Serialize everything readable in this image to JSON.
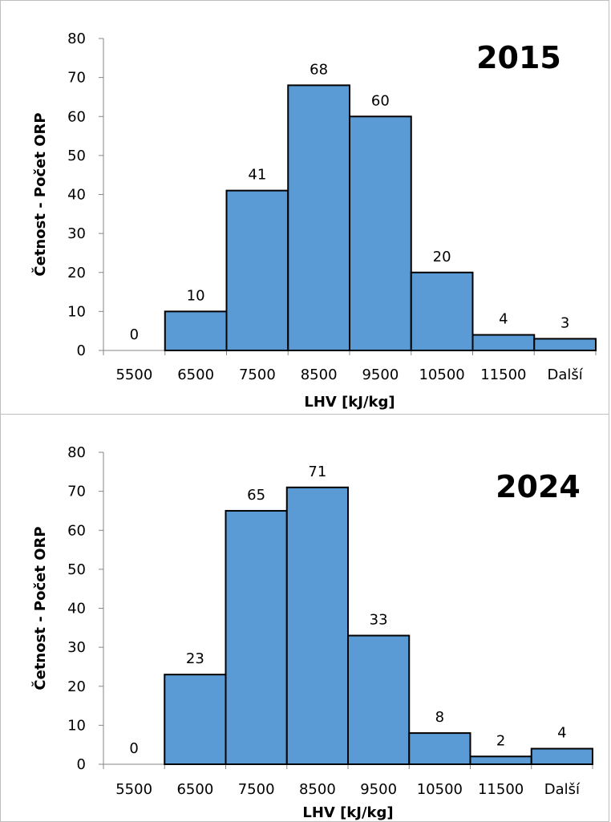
{
  "chart_data": [
    {
      "type": "bar",
      "title": "2015",
      "xlabel": "LHV [kJ/kg]",
      "ylabel": "Četnost - Počet ORP",
      "categories": [
        "5500",
        "6500",
        "7500",
        "8500",
        "9500",
        "10500",
        "11500",
        "Další"
      ],
      "values": [
        0,
        10,
        41,
        68,
        60,
        20,
        4,
        3
      ],
      "data_labels": [
        "0",
        "10",
        "41",
        "68",
        "60",
        "20",
        "4",
        "3"
      ],
      "ylim": [
        0,
        80
      ],
      "yticks": [
        "0",
        "10",
        "20",
        "30",
        "40",
        "50",
        "60",
        "70",
        "80"
      ],
      "bar_color": "#5b9bd5",
      "grid": false,
      "legend": "none"
    },
    {
      "type": "bar",
      "title": "2024",
      "xlabel": "LHV [kJ/kg]",
      "ylabel": "Četnost - Počet ORP",
      "categories": [
        "5500",
        "6500",
        "7500",
        "8500",
        "9500",
        "10500",
        "11500",
        "Další"
      ],
      "values": [
        0,
        23,
        65,
        71,
        33,
        8,
        2,
        4
      ],
      "data_labels": [
        "0",
        "23",
        "65",
        "71",
        "33",
        "8",
        "2",
        "4"
      ],
      "ylim": [
        0,
        80
      ],
      "yticks": [
        "0",
        "10",
        "20",
        "30",
        "40",
        "50",
        "60",
        "70",
        "80"
      ],
      "bar_color": "#5b9bd5",
      "grid": false,
      "legend": "none"
    }
  ]
}
